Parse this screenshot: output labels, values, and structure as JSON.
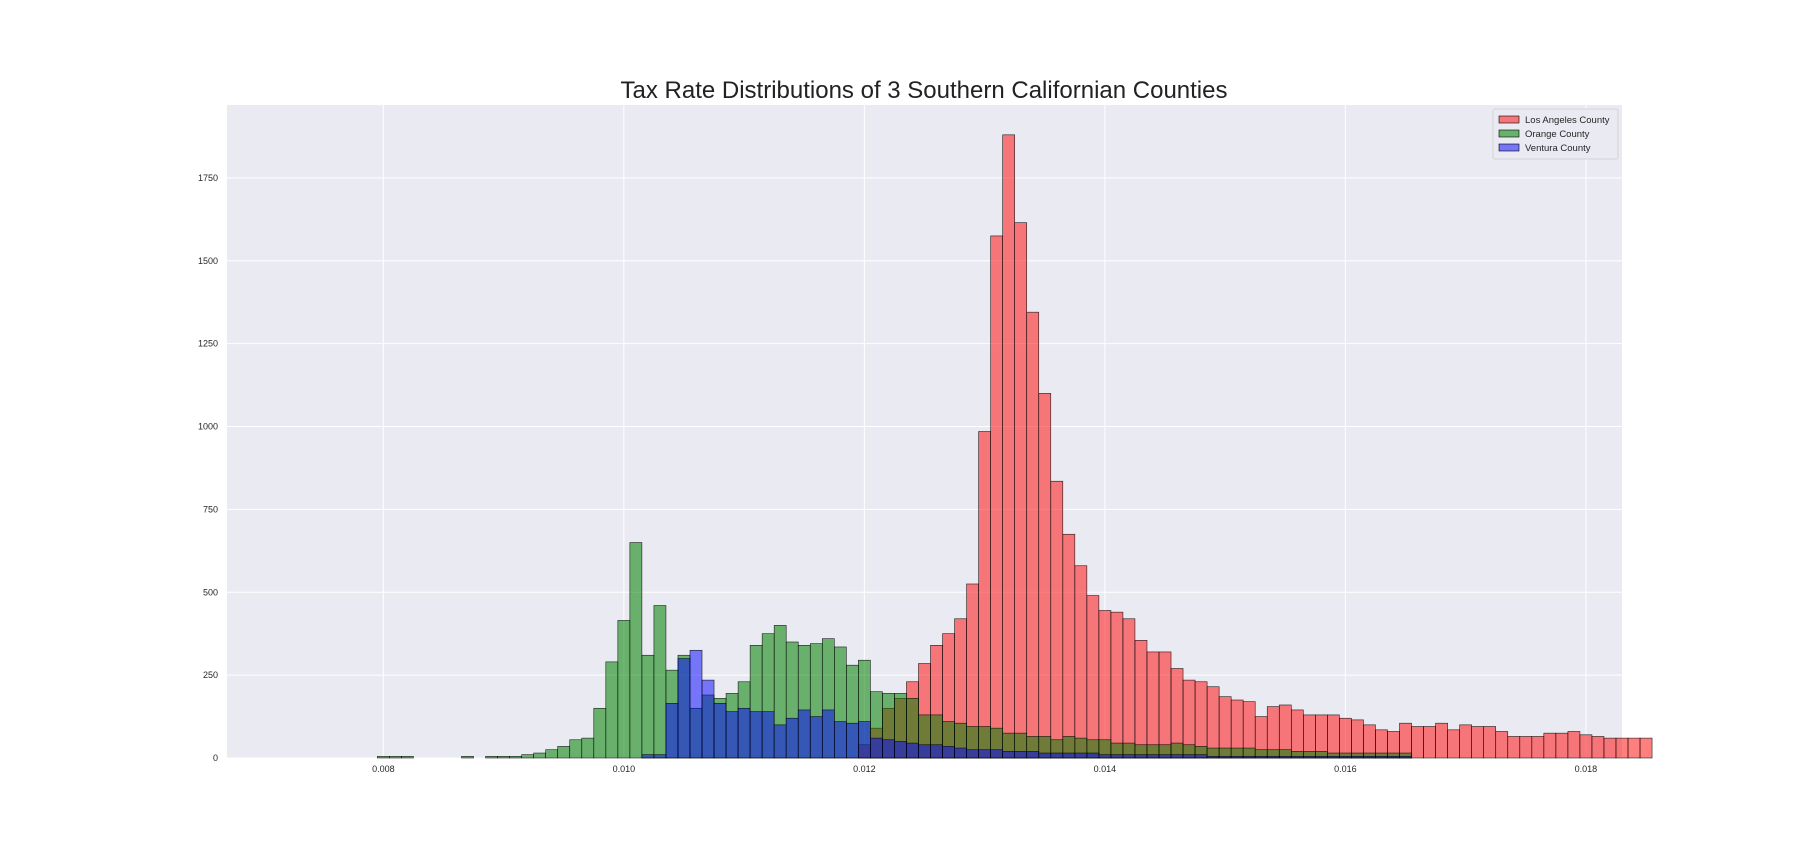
{
  "chart_data": {
    "type": "bar",
    "subtype": "overlapping-histogram",
    "title": "Tax Rate Distributions of 3 Southern Californian Counties",
    "xlabel": "",
    "ylabel": "",
    "xlim": [
      0.0067,
      0.0183
    ],
    "ylim": [
      0,
      1970
    ],
    "xticks": [
      0.008,
      0.01,
      0.012,
      0.014,
      0.016,
      0.018
    ],
    "xtick_labels": [
      "0.008",
      "0.010",
      "0.012",
      "0.014",
      "0.016",
      "0.018"
    ],
    "yticks": [
      0,
      250,
      500,
      750,
      1000,
      1250,
      1500,
      1750
    ],
    "ytick_labels": [
      "0",
      "250",
      "500",
      "750",
      "1000",
      "1250",
      "1500",
      "1750"
    ],
    "grid": true,
    "legend_position": "upper-right",
    "bin_start": 0.00795,
    "bin_width": 0.0001,
    "series": [
      {
        "name": "Los Angeles County",
        "color": "#ff0000",
        "opacity": 0.5,
        "values": [
          0,
          0,
          0,
          0,
          0,
          0,
          0,
          0,
          0,
          0,
          0,
          0,
          0,
          0,
          0,
          0,
          0,
          0,
          0,
          0,
          0,
          0,
          0,
          0,
          0,
          0,
          0,
          0,
          0,
          0,
          0,
          0,
          0,
          0,
          0,
          0,
          0,
          0,
          0,
          0,
          40,
          90,
          150,
          180,
          230,
          285,
          340,
          375,
          420,
          525,
          985,
          1575,
          1880,
          1615,
          1345,
          1100,
          835,
          675,
          580,
          490,
          445,
          440,
          420,
          355,
          320,
          320,
          270,
          235,
          230,
          215,
          185,
          175,
          170,
          125,
          155,
          160,
          145,
          130,
          130,
          130,
          120,
          115,
          100,
          85,
          80,
          105,
          95,
          95,
          105,
          85,
          100,
          95,
          95,
          80,
          65,
          65,
          65,
          75,
          75,
          80,
          70,
          65,
          60,
          60,
          60,
          60
        ]
      },
      {
        "name": "Orange County",
        "color": "#008000",
        "opacity": 0.55,
        "values": [
          5,
          5,
          5,
          0,
          0,
          0,
          0,
          5,
          0,
          5,
          5,
          5,
          10,
          15,
          25,
          35,
          55,
          60,
          150,
          290,
          415,
          650,
          310,
          460,
          265,
          310,
          150,
          190,
          180,
          195,
          230,
          340,
          375,
          400,
          350,
          340,
          345,
          360,
          335,
          280,
          295,
          200,
          195,
          195,
          180,
          130,
          130,
          110,
          105,
          95,
          95,
          90,
          75,
          75,
          65,
          65,
          55,
          65,
          60,
          55,
          55,
          45,
          45,
          40,
          40,
          40,
          45,
          40,
          35,
          30,
          30,
          30,
          30,
          25,
          25,
          25,
          20,
          20,
          20,
          15,
          15,
          15,
          15,
          15,
          15,
          15
        ]
      },
      {
        "name": "Ventura County",
        "color": "#0000ff",
        "opacity": 0.5,
        "values": [
          0,
          0,
          0,
          0,
          0,
          0,
          0,
          0,
          0,
          0,
          0,
          0,
          0,
          0,
          0,
          0,
          0,
          0,
          0,
          0,
          0,
          0,
          10,
          10,
          165,
          300,
          325,
          235,
          165,
          140,
          150,
          140,
          140,
          100,
          120,
          145,
          125,
          145,
          110,
          105,
          110,
          60,
          55,
          50,
          45,
          40,
          40,
          35,
          30,
          25,
          25,
          25,
          20,
          20,
          20,
          15,
          15,
          15,
          15,
          15,
          10,
          10,
          10,
          10,
          10,
          10,
          10,
          10,
          10,
          5,
          5,
          5,
          5,
          5,
          5,
          5,
          5,
          5,
          5,
          5,
          5,
          5,
          5,
          5,
          5,
          5
        ]
      }
    ]
  }
}
